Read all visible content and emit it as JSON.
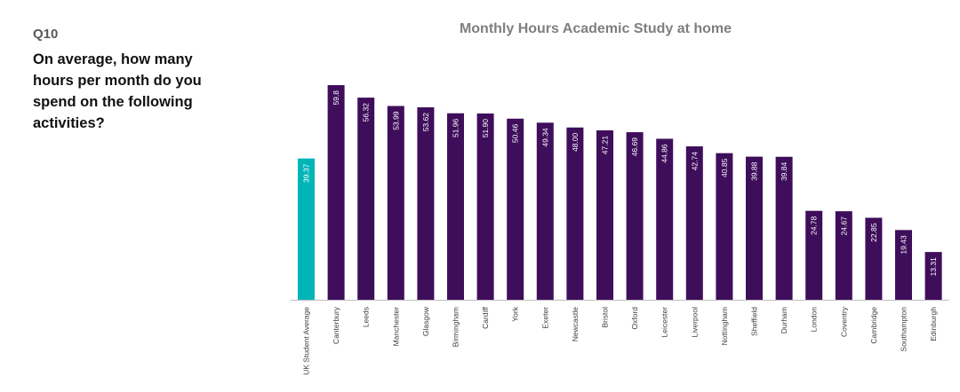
{
  "question": {
    "number": "Q10",
    "text": "On average, how many hours per month do you spend on the following activities?"
  },
  "colors": {
    "highlight": "#00B5B8",
    "bar": "#3F0E5B",
    "axis": "#bfbfbf",
    "label_text": "#ffffff",
    "category_text": "#404040"
  },
  "chart_data": {
    "type": "bar",
    "title": "Monthly Hours Academic Study at home",
    "xlabel": "",
    "ylabel": "",
    "ylim": [
      0,
      60
    ],
    "grid": false,
    "categories": [
      "UK Student Average",
      "Canterbury",
      "Leeds",
      "Manchester",
      "Glasgow",
      "Birmingham",
      "Cardiff",
      "York",
      "Exeter",
      "Newcastle",
      "Bristol",
      "Oxford",
      "Leicester",
      "Liverpool",
      "Nottingham",
      "Sheffield",
      "Durham",
      "London",
      "Coventry",
      "Cambridge",
      "Southampton",
      "Edinburgh"
    ],
    "values": [
      39.37,
      59.8,
      56.32,
      53.99,
      53.62,
      51.96,
      51.9,
      50.46,
      49.34,
      48.0,
      47.21,
      46.69,
      44.86,
      42.74,
      40.85,
      39.88,
      39.84,
      24.78,
      24.67,
      22.85,
      19.43,
      13.31
    ],
    "data_labels": [
      "39.37",
      "59.8",
      "56.32",
      "53.99",
      "53.62",
      "51.96",
      "51.90",
      "50.46",
      "49.34",
      "48.00",
      "47.21",
      "46.69",
      "44.86",
      "42.74",
      "40.85",
      "39.88",
      "39.84",
      "24.78",
      "24.67",
      "22.85",
      "19.43",
      "13.31"
    ],
    "highlight_index": 0
  }
}
